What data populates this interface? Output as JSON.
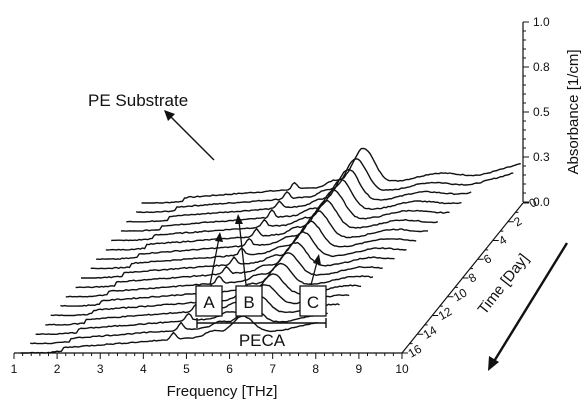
{
  "chart_data": {
    "type": "line",
    "subtype": "3d-waterfall",
    "title": "",
    "x_axis": {
      "label": "Frequency [THz]",
      "range": [
        1,
        10
      ],
      "ticks": [
        "1",
        "2",
        "3",
        "4",
        "5",
        "6",
        "7",
        "8",
        "9",
        "10"
      ]
    },
    "y_axis": {
      "label": "Absorbance [1/cm]",
      "range": [
        0.0,
        1.0
      ],
      "ticks": [
        "0.0",
        "0.3",
        "0.5",
        "0.8",
        "1.0"
      ]
    },
    "z_axis": {
      "label": "Time [Day]",
      "range": [
        0,
        16
      ],
      "ticks": [
        "0",
        "2",
        "4",
        "6",
        "8",
        "10",
        "12",
        "14",
        "16"
      ]
    },
    "series_days": [
      0,
      1,
      2,
      3,
      4,
      5,
      6,
      7,
      8,
      9,
      10,
      11,
      12,
      13,
      14,
      15,
      16
    ],
    "peaks": [
      {
        "freq": 5.6,
        "label": "A"
      },
      {
        "freq": 6.3,
        "label": "B"
      },
      {
        "freq": 8.0,
        "label": "C"
      }
    ],
    "annotations": {
      "substrate": "PE Substrate",
      "group": "PECA"
    },
    "grid": false,
    "legend": "none"
  }
}
